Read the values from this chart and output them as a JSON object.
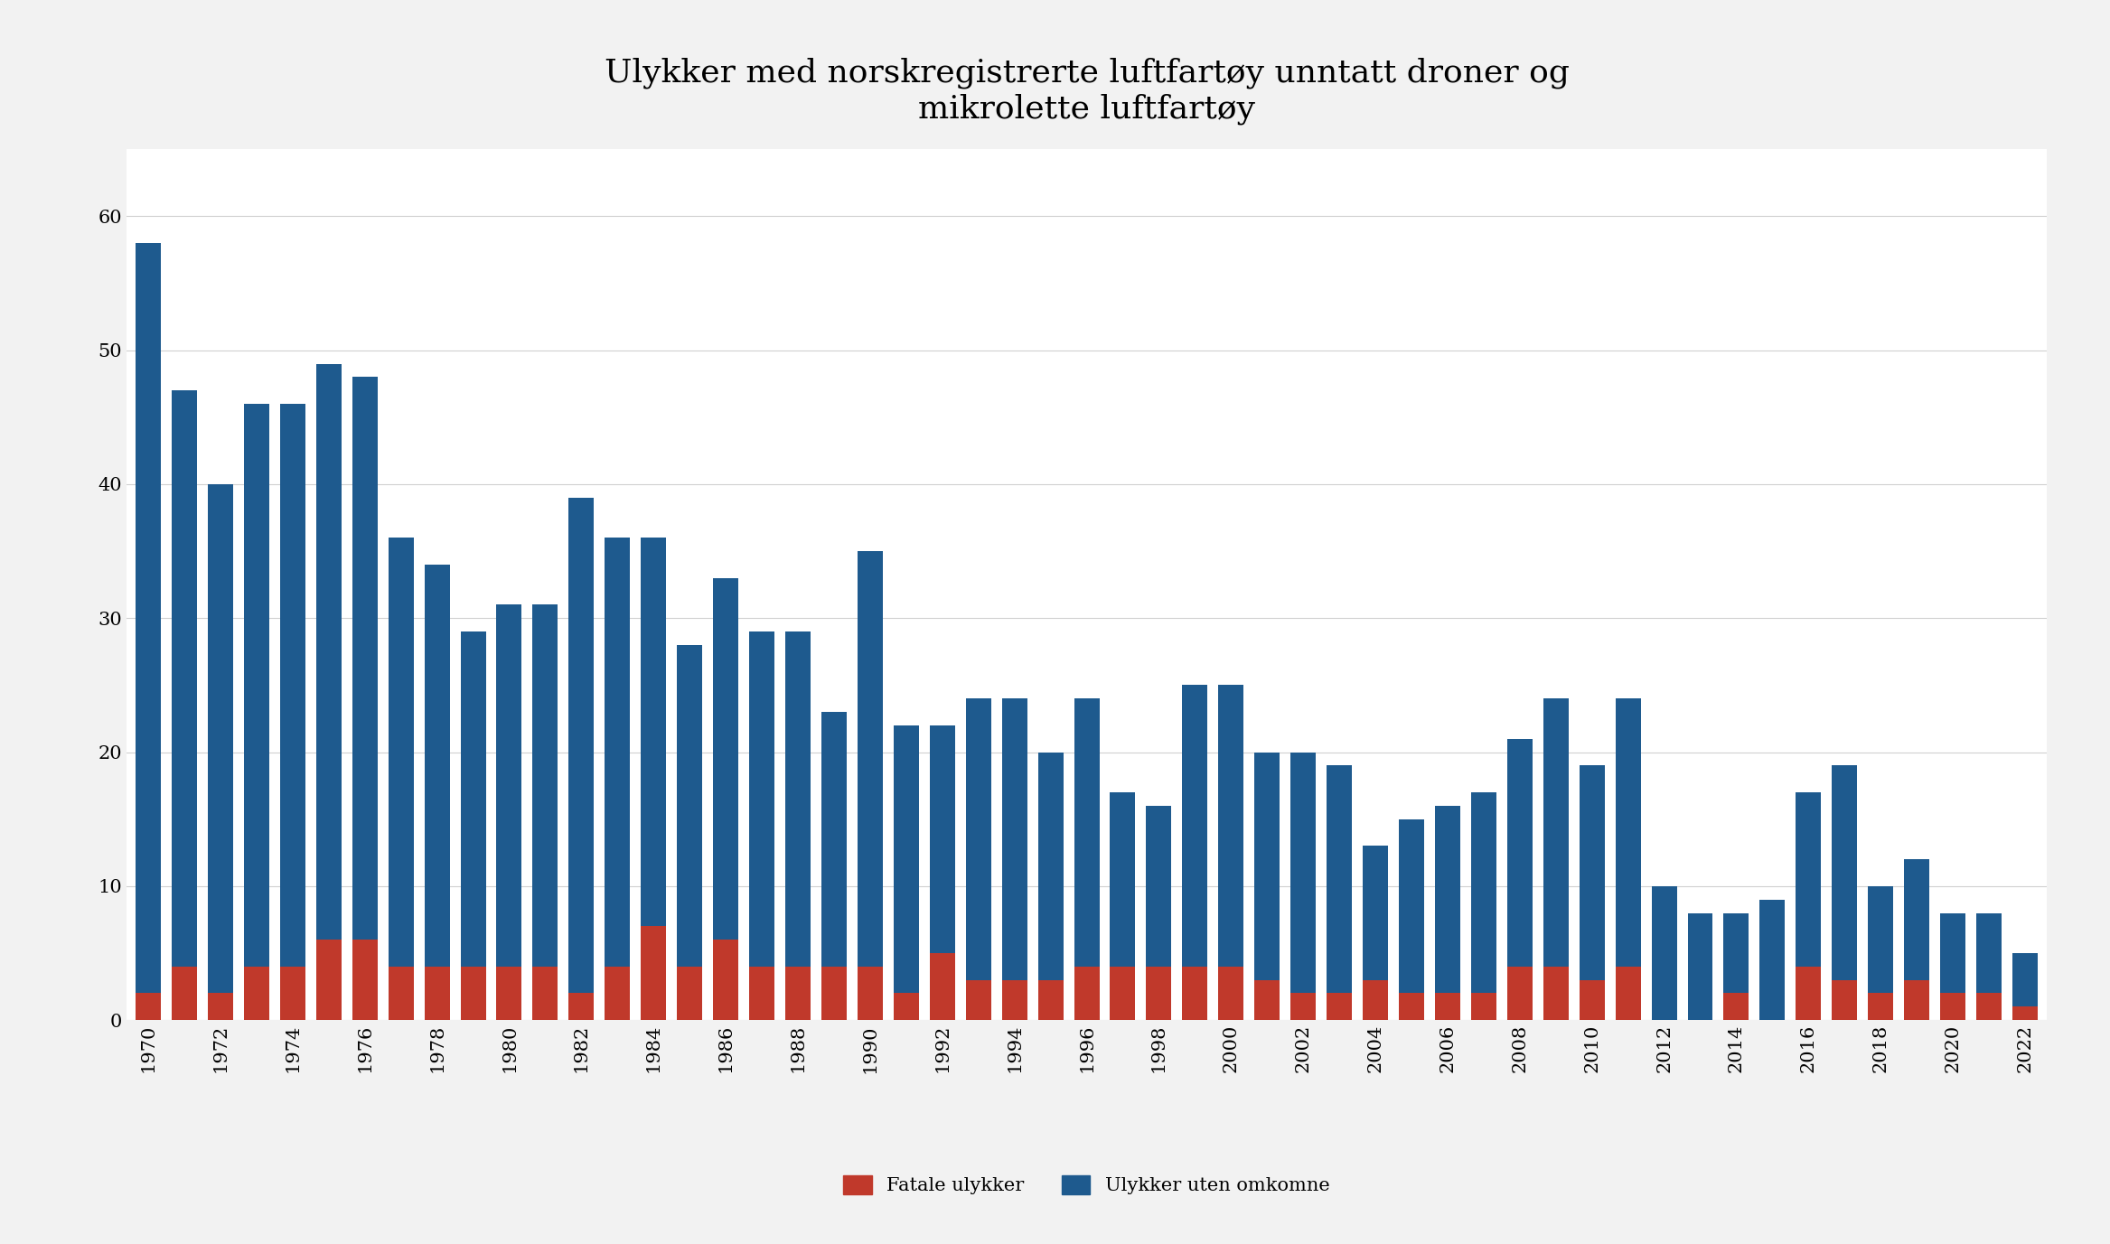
{
  "title": "Ulykker med norskregistrerte luftfartøy unntatt droner og\nmikrolette luftfartøy",
  "years": [
    1970,
    1971,
    1972,
    1973,
    1974,
    1975,
    1976,
    1977,
    1978,
    1979,
    1980,
    1981,
    1982,
    1983,
    1984,
    1985,
    1986,
    1987,
    1988,
    1989,
    1990,
    1991,
    1992,
    1993,
    1994,
    1995,
    1996,
    1997,
    1998,
    1999,
    2000,
    2001,
    2002,
    2003,
    2004,
    2005,
    2006,
    2007,
    2008,
    2009,
    2010,
    2011,
    2012,
    2013,
    2014,
    2015,
    2016,
    2017,
    2018,
    2019,
    2020,
    2021,
    2022
  ],
  "fatal": [
    2,
    4,
    2,
    4,
    4,
    6,
    6,
    4,
    4,
    4,
    4,
    4,
    2,
    4,
    7,
    4,
    6,
    4,
    4,
    4,
    4,
    2,
    5,
    3,
    3,
    3,
    4,
    4,
    4,
    4,
    4,
    3,
    2,
    2,
    3,
    2,
    2,
    2,
    4,
    4,
    3,
    4,
    0,
    0,
    2,
    0,
    4,
    3,
    2,
    3,
    2,
    2,
    1
  ],
  "non_fatal": [
    56,
    43,
    38,
    42,
    42,
    43,
    42,
    32,
    30,
    25,
    27,
    27,
    37,
    32,
    29,
    24,
    27,
    25,
    25,
    19,
    31,
    20,
    17,
    21,
    21,
    17,
    20,
    13,
    12,
    21,
    21,
    17,
    18,
    17,
    10,
    13,
    14,
    15,
    17,
    20,
    16,
    20,
    10,
    8,
    6,
    9,
    13,
    16,
    8,
    9,
    6,
    6,
    4
  ],
  "bar_color_fatal": "#c0392b",
  "bar_color_non_fatal": "#1e5a8e",
  "background_color": "#f2f2f2",
  "plot_background_color": "#ffffff",
  "legend_fatal": "Fatale ulykker",
  "legend_non_fatal": "Ulykker uten omkomne",
  "ylim": [
    0,
    65
  ],
  "yticks": [
    0,
    10,
    20,
    30,
    40,
    50,
    60
  ],
  "grid_color": "#d0d0d0",
  "title_fontsize": 26,
  "tick_fontsize": 15,
  "legend_fontsize": 15
}
